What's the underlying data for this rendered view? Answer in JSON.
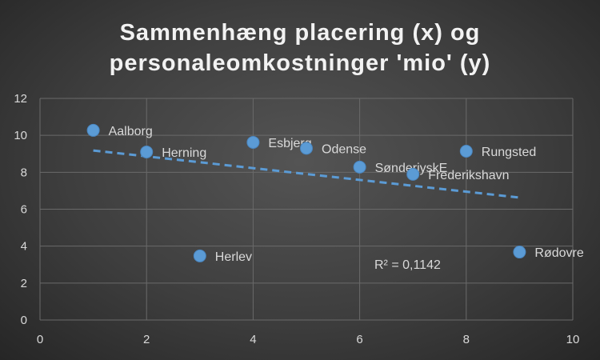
{
  "chart_data": {
    "type": "scatter",
    "title_lines": [
      "Sammenhæng placering (x) og",
      "personaleomkostninger 'mio' (y)"
    ],
    "xlabel": "",
    "ylabel": "",
    "xlim": [
      0,
      10
    ],
    "ylim": [
      0,
      12
    ],
    "x_ticks": [
      0,
      2,
      4,
      6,
      8,
      10
    ],
    "y_ticks": [
      0,
      2,
      4,
      6,
      8,
      10,
      12
    ],
    "grid": true,
    "legend": "none",
    "marker_color": "#5b9bd5",
    "points": [
      {
        "label": "Aalborg",
        "x": 1,
        "y": 10.27
      },
      {
        "label": "Herning",
        "x": 2,
        "y": 9.1
      },
      {
        "label": "Herlev",
        "x": 3,
        "y": 3.47
      },
      {
        "label": "Esbjerg",
        "x": 4,
        "y": 9.62
      },
      {
        "label": "Odense",
        "x": 5,
        "y": 9.3
      },
      {
        "label": "SønderjyskE",
        "x": 6,
        "y": 8.28
      },
      {
        "label": "Frederikshavn",
        "x": 7,
        "y": 7.89
      },
      {
        "label": "Rungsted",
        "x": 8,
        "y": 9.14
      },
      {
        "label": "Rødovre",
        "x": 9,
        "y": 3.68
      }
    ],
    "trendline": {
      "type": "linear",
      "style": "dashed",
      "from": [
        1,
        9.18
      ],
      "to": [
        9,
        6.63
      ],
      "r2_label": "R² = 0,1142"
    }
  }
}
